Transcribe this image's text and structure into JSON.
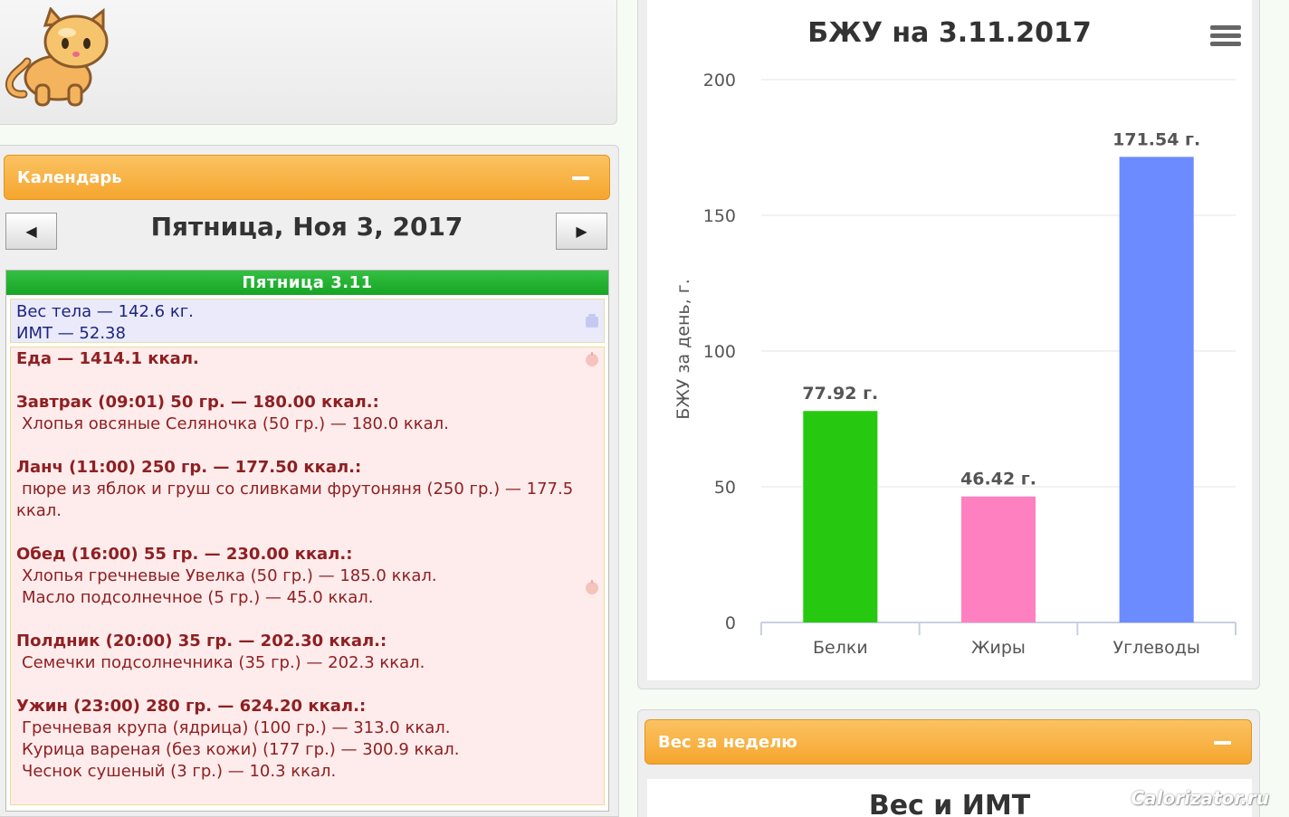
{
  "calendar": {
    "header_label": "Календарь",
    "prev_icon": "◀",
    "next_icon": "▶",
    "date_title": "Пятница, Ноя 3, 2017"
  },
  "day": {
    "header": "Пятница 3.11",
    "weight_line": "Вес тела — 142.6 кг.",
    "bmi_line": "ИМТ — 52.38",
    "food_total": "Еда — 1414.1 ккал.",
    "meals": [
      {
        "title": "Завтрак (09:01) 50 гр. — 180.00 ккал.:",
        "items": [
          "Хлопья овсяные Селяночка (50 гр.) — 180.0 ккал."
        ]
      },
      {
        "title": "Ланч (11:00) 250 гр. — 177.50 ккал.:",
        "items": [
          "пюре из яблок и груш со сливками фрутоняня (250 гр.) — 177.5",
          "ккал."
        ]
      },
      {
        "title": "Обед (16:00) 55 гр. — 230.00 ккал.:",
        "items": [
          "Хлопья гречневые Увелка (50 гр.) — 185.0 ккал.",
          "Масло подсолнечное (5 гр.) — 45.0 ккал."
        ]
      },
      {
        "title": "Полдник (20:00) 35 гр. — 202.30 ккал.:",
        "items": [
          "Семечки подсолнечника (35 гр.) — 202.3 ккал."
        ]
      },
      {
        "title": "Ужин (23:00) 280 гр. — 624.20 ккал.:",
        "items": [
          "Гречневая крупа (ядрица) (100 гр.) — 313.0 ккал.",
          "Курица вареная (без кожи) (177 гр.) — 300.9 ккал.",
          "Чеснок сушеный (3 гр.) — 10.3 ккал."
        ]
      }
    ]
  },
  "chart_data": {
    "type": "bar",
    "title": "БЖУ на 3.11.2017",
    "xlabel": "",
    "ylabel": "БЖУ за день, г.",
    "ylim": [
      0,
      200
    ],
    "yticks": [
      0,
      50,
      100,
      150,
      200
    ],
    "categories": [
      "Белки",
      "Жиры",
      "Углеводы"
    ],
    "values": [
      77.92,
      46.42,
      171.54
    ],
    "data_labels": [
      "77.92 г.",
      "46.42 г.",
      "171.54 г."
    ],
    "colors": [
      "#27c910",
      "#ff80c0",
      "#6b8bff"
    ],
    "grid": true
  },
  "weekly": {
    "header_label": "Вес за неделю",
    "chart_title": "Вес и ИМТ"
  },
  "watermark": "Calorizator.ru"
}
